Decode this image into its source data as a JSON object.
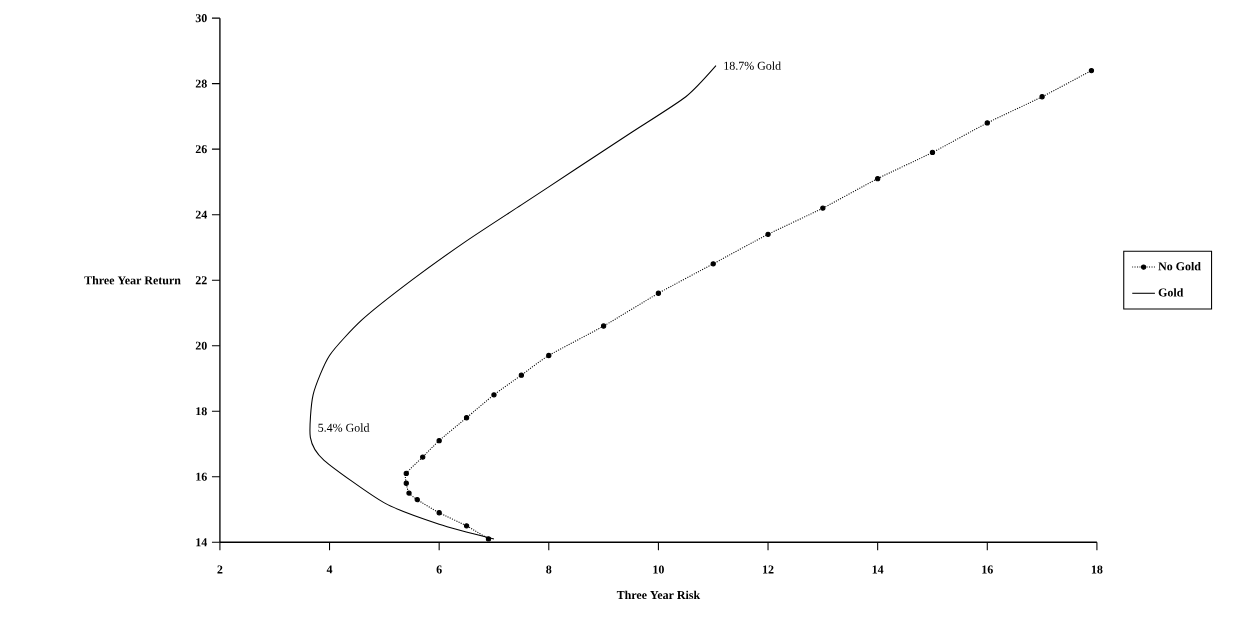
{
  "chart_data": {
    "type": "line",
    "xlabel": "Three Year Risk",
    "ylabel": "Three Year Return",
    "xlim": [
      2,
      18
    ],
    "ylim": [
      14,
      30
    ],
    "xticks": [
      2,
      4,
      6,
      8,
      10,
      12,
      14,
      16,
      18
    ],
    "yticks": [
      14,
      16,
      18,
      20,
      22,
      24,
      26,
      28,
      30
    ],
    "grid": false,
    "legend": "right",
    "series": [
      {
        "name": "No Gold",
        "color": "#000000",
        "marker": "circle",
        "line_style": "dotted",
        "x": [
          6.9,
          6.5,
          6.0,
          5.6,
          5.45,
          5.4,
          5.4,
          5.7,
          6.0,
          6.5,
          7.0,
          7.5,
          8.0,
          9.0,
          10.0,
          11.0,
          12.0,
          13.0,
          14.0,
          15.0,
          16.0,
          17.0,
          17.9
        ],
        "values": [
          14.1,
          14.5,
          14.9,
          15.3,
          15.5,
          15.8,
          16.1,
          16.6,
          17.1,
          17.8,
          18.5,
          19.1,
          19.7,
          20.6,
          21.6,
          22.5,
          23.4,
          24.2,
          25.1,
          25.9,
          26.8,
          27.6,
          28.4
        ]
      },
      {
        "name": "Gold",
        "color": "#000000",
        "marker": "none",
        "line_style": "solid",
        "x": [
          7.0,
          6.0,
          5.0,
          3.9,
          3.65,
          3.7,
          4.0,
          4.6,
          5.5,
          6.5,
          7.5,
          8.5,
          9.5,
          10.5,
          11.05
        ],
        "values": [
          14.1,
          14.55,
          15.2,
          16.5,
          17.2,
          18.5,
          19.7,
          20.8,
          22.0,
          23.2,
          24.3,
          25.4,
          26.5,
          27.6,
          28.55
        ]
      }
    ],
    "annotations": [
      {
        "text": "18.7% Gold",
        "x": 11.05,
        "y": 28.55
      },
      {
        "text": "5.4% Gold",
        "x": 3.65,
        "y": 17.5
      }
    ]
  }
}
